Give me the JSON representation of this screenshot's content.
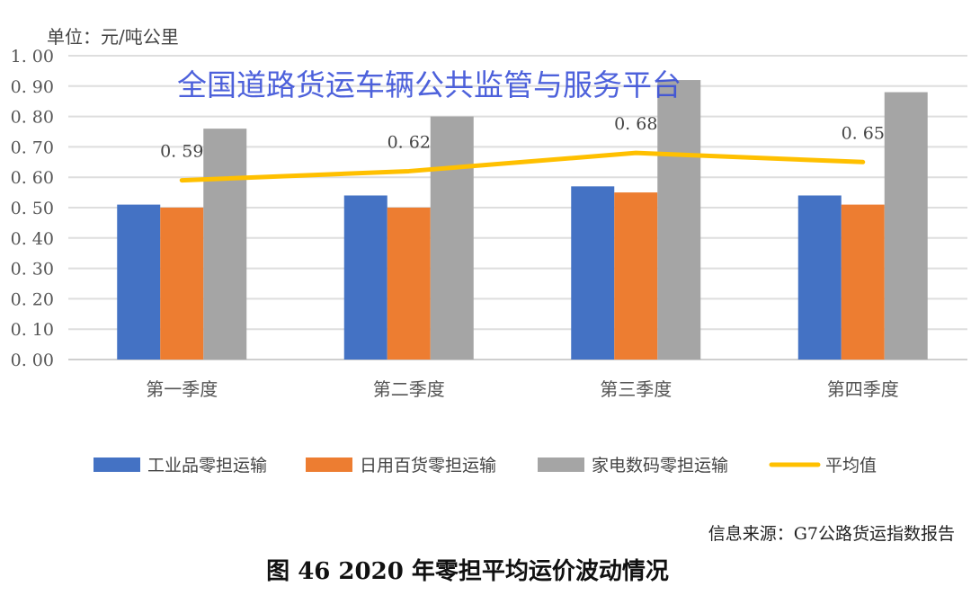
{
  "chart_data": {
    "type": "bar",
    "unit_label": "单位：元/吨公里",
    "categories": [
      "第一季度",
      "第二季度",
      "第三季度",
      "第四季度"
    ],
    "ylim": [
      0,
      1.0
    ],
    "yticks": [
      "0.00",
      "0.10",
      "0.20",
      "0.30",
      "0.40",
      "0.50",
      "0.60",
      "0.70",
      "0.80",
      "0.90",
      "1.00"
    ],
    "grid": true,
    "legend_position": "bottom",
    "series": [
      {
        "name": "工业品零担运输",
        "type": "bar",
        "color": "#4472c4",
        "values": [
          0.51,
          0.54,
          0.57,
          0.54
        ]
      },
      {
        "name": "日用百货零担运输",
        "type": "bar",
        "color": "#ed7d31",
        "values": [
          0.5,
          0.5,
          0.55,
          0.51
        ]
      },
      {
        "name": "家电数码零担运输",
        "type": "bar",
        "color": "#a5a5a5",
        "values": [
          0.76,
          0.8,
          0.92,
          0.88
        ]
      },
      {
        "name": "平均值",
        "type": "line",
        "color": "#ffc000",
        "values": [
          0.59,
          0.62,
          0.68,
          0.65
        ],
        "data_labels": [
          "0.59",
          "0.62",
          "0.68",
          "0.65"
        ]
      }
    ]
  },
  "watermark": "全国道路货运车辆公共监管与服务平台",
  "source": "信息来源：G7公路货运指数报告",
  "caption": "图 46  2020 年零担平均运价波动情况"
}
